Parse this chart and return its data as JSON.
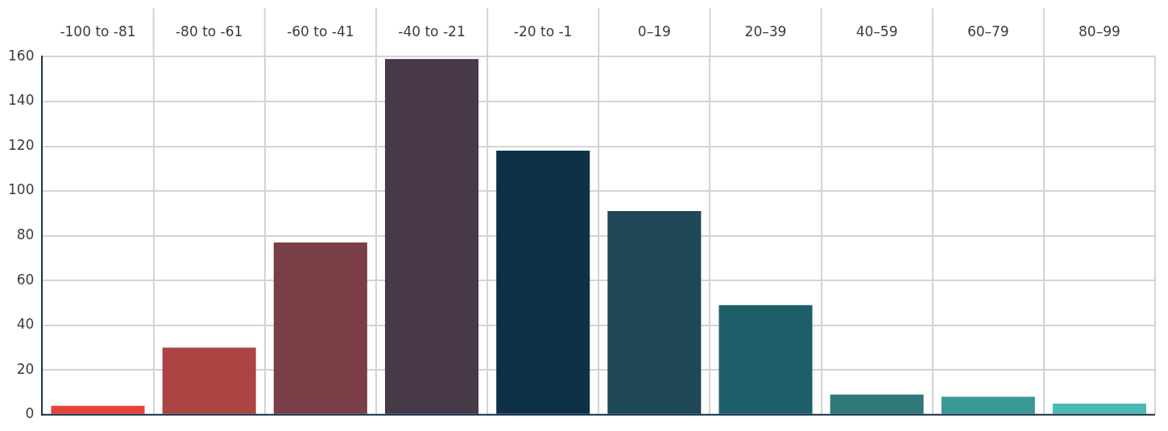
{
  "chart_data": {
    "type": "bar",
    "categories": [
      "-100 to -81",
      "-80 to -61",
      "-60 to -41",
      "-40 to -21",
      "-20 to -1",
      "0–19",
      "20–39",
      "40–59",
      "60–79",
      "80–99"
    ],
    "values": [
      4,
      30,
      77,
      159,
      118,
      91,
      49,
      9,
      8,
      5
    ],
    "colors": [
      "#e8403a",
      "#ad4444",
      "#7a3e46",
      "#483948",
      "#0f3148",
      "#1e4757",
      "#1f5f6a",
      "#31787b",
      "#3a9896",
      "#4bbab2"
    ],
    "ylim": [
      0,
      160
    ],
    "yticks": [
      0,
      20,
      40,
      60,
      80,
      100,
      120,
      140,
      160
    ],
    "grid": true,
    "legend": false
  }
}
